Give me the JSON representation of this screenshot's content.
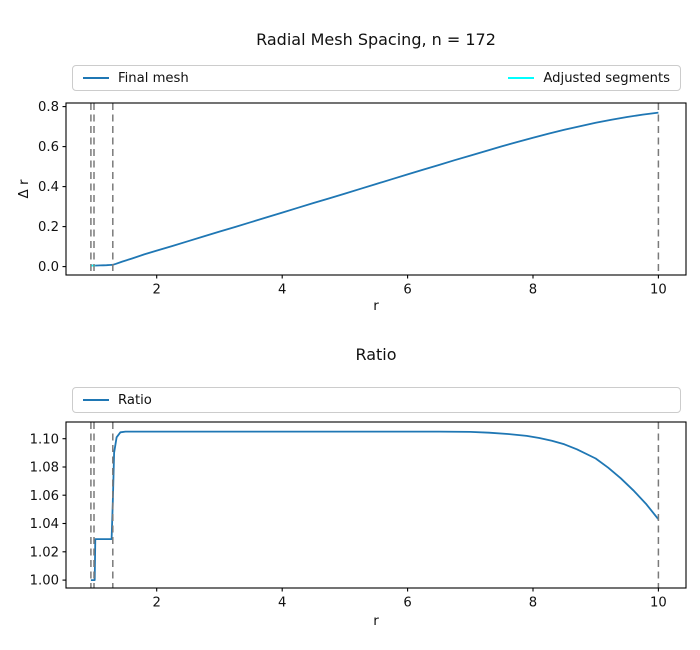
{
  "figure": {
    "background": "#ffffff"
  },
  "chart_data": [
    {
      "type": "line",
      "title": "Radial Mesh Spacing, n = 172",
      "xlabel": "r",
      "ylabel": "Δ r",
      "xlim": [
        0.553,
        10.44
      ],
      "ylim": [
        -0.042,
        0.818
      ],
      "xticks": [
        2,
        4,
        6,
        8,
        10
      ],
      "xtick_labels": [
        "2",
        "4",
        "6",
        "8",
        "10"
      ],
      "yticks": [
        0.0,
        0.2,
        0.4,
        0.6,
        0.8
      ],
      "ytick_labels": [
        "0.0",
        "0.2",
        "0.4",
        "0.6",
        "0.8"
      ],
      "grid": false,
      "legend_position": "above-axes",
      "legend_mode": "expand",
      "legend": [
        {
          "label": "Final mesh",
          "color": "#1f77b4"
        },
        {
          "label": "Adjusted segments",
          "color": "#00ffff"
        }
      ],
      "vlines": {
        "x": [
          0.95,
          1.0,
          1.3,
          10.0
        ],
        "color": "#7a7a7a",
        "style": "dashed"
      },
      "series": [
        {
          "name": "Final mesh",
          "color": "#1f77b4",
          "points": [
            [
              0.95,
              0.005
            ],
            [
              1.0,
              0.005
            ],
            [
              1.05,
              0.0055
            ],
            [
              1.1,
              0.006
            ],
            [
              1.15,
              0.0065
            ],
            [
              1.2,
              0.0072
            ],
            [
              1.25,
              0.008
            ],
            [
              1.3,
              0.009
            ],
            [
              1.35,
              0.014
            ],
            [
              1.45,
              0.025
            ],
            [
              1.6,
              0.04
            ],
            [
              1.8,
              0.061
            ],
            [
              2.0,
              0.08
            ],
            [
              2.25,
              0.103
            ],
            [
              2.5,
              0.127
            ],
            [
              2.75,
              0.151
            ],
            [
              3.0,
              0.175
            ],
            [
              3.25,
              0.198
            ],
            [
              3.5,
              0.222
            ],
            [
              3.75,
              0.246
            ],
            [
              4.0,
              0.27
            ],
            [
              4.25,
              0.294
            ],
            [
              4.5,
              0.318
            ],
            [
              4.75,
              0.341
            ],
            [
              5.0,
              0.365
            ],
            [
              5.25,
              0.389
            ],
            [
              5.5,
              0.413
            ],
            [
              5.75,
              0.437
            ],
            [
              6.0,
              0.461
            ],
            [
              6.25,
              0.485
            ],
            [
              6.5,
              0.508
            ],
            [
              6.75,
              0.532
            ],
            [
              7.0,
              0.555
            ],
            [
              7.25,
              0.578
            ],
            [
              7.5,
              0.601
            ],
            [
              7.75,
              0.623
            ],
            [
              8.0,
              0.644
            ],
            [
              8.25,
              0.665
            ],
            [
              8.5,
              0.684
            ],
            [
              8.75,
              0.702
            ],
            [
              9.0,
              0.719
            ],
            [
              9.25,
              0.734
            ],
            [
              9.5,
              0.748
            ],
            [
              9.75,
              0.76
            ],
            [
              10.0,
              0.77
            ]
          ]
        },
        {
          "name": "Adjusted segments",
          "color": "#00ffff",
          "points": [
            [
              0.95,
              0.005
            ],
            [
              1.02,
              0.005
            ]
          ]
        }
      ]
    },
    {
      "type": "line",
      "title": "Ratio",
      "xlabel": "r",
      "ylabel": "",
      "xlim": [
        0.553,
        10.44
      ],
      "ylim": [
        0.9944,
        1.1118
      ],
      "xticks": [
        2,
        4,
        6,
        8,
        10
      ],
      "xtick_labels": [
        "2",
        "4",
        "6",
        "8",
        "10"
      ],
      "yticks": [
        1.0,
        1.02,
        1.04,
        1.06,
        1.08,
        1.1
      ],
      "ytick_labels": [
        "1.00",
        "1.02",
        "1.04",
        "1.06",
        "1.08",
        "1.10"
      ],
      "grid": false,
      "legend_position": "above-axes",
      "legend_mode": "expand",
      "legend": [
        {
          "label": "Ratio",
          "color": "#1f77b4"
        }
      ],
      "vlines": {
        "x": [
          0.95,
          1.0,
          1.3,
          10.0
        ],
        "color": "#7a7a7a",
        "style": "dashed"
      },
      "series": [
        {
          "name": "Ratio",
          "color": "#1f77b4",
          "points": [
            [
              0.95,
              1.0
            ],
            [
              1.01,
              1.0
            ],
            [
              1.02,
              1.029
            ],
            [
              1.28,
              1.029
            ],
            [
              1.3,
              1.055
            ],
            [
              1.32,
              1.09
            ],
            [
              1.36,
              1.101
            ],
            [
              1.42,
              1.1045
            ],
            [
              1.5,
              1.105
            ],
            [
              2.0,
              1.105
            ],
            [
              2.5,
              1.105
            ],
            [
              3.0,
              1.105
            ],
            [
              3.5,
              1.105
            ],
            [
              4.0,
              1.105
            ],
            [
              4.5,
              1.105
            ],
            [
              5.0,
              1.105
            ],
            [
              5.5,
              1.105
            ],
            [
              6.0,
              1.105
            ],
            [
              6.5,
              1.105
            ],
            [
              7.0,
              1.1048
            ],
            [
              7.3,
              1.1042
            ],
            [
              7.6,
              1.1033
            ],
            [
              7.9,
              1.102
            ],
            [
              8.1,
              1.1005
            ],
            [
              8.3,
              1.0985
            ],
            [
              8.5,
              1.096
            ],
            [
              8.7,
              1.0925
            ],
            [
              9.0,
              1.086
            ],
            [
              9.2,
              1.0795
            ],
            [
              9.4,
              1.072
            ],
            [
              9.6,
              1.0635
            ],
            [
              9.8,
              1.054
            ],
            [
              10.0,
              1.043
            ]
          ]
        }
      ]
    }
  ]
}
